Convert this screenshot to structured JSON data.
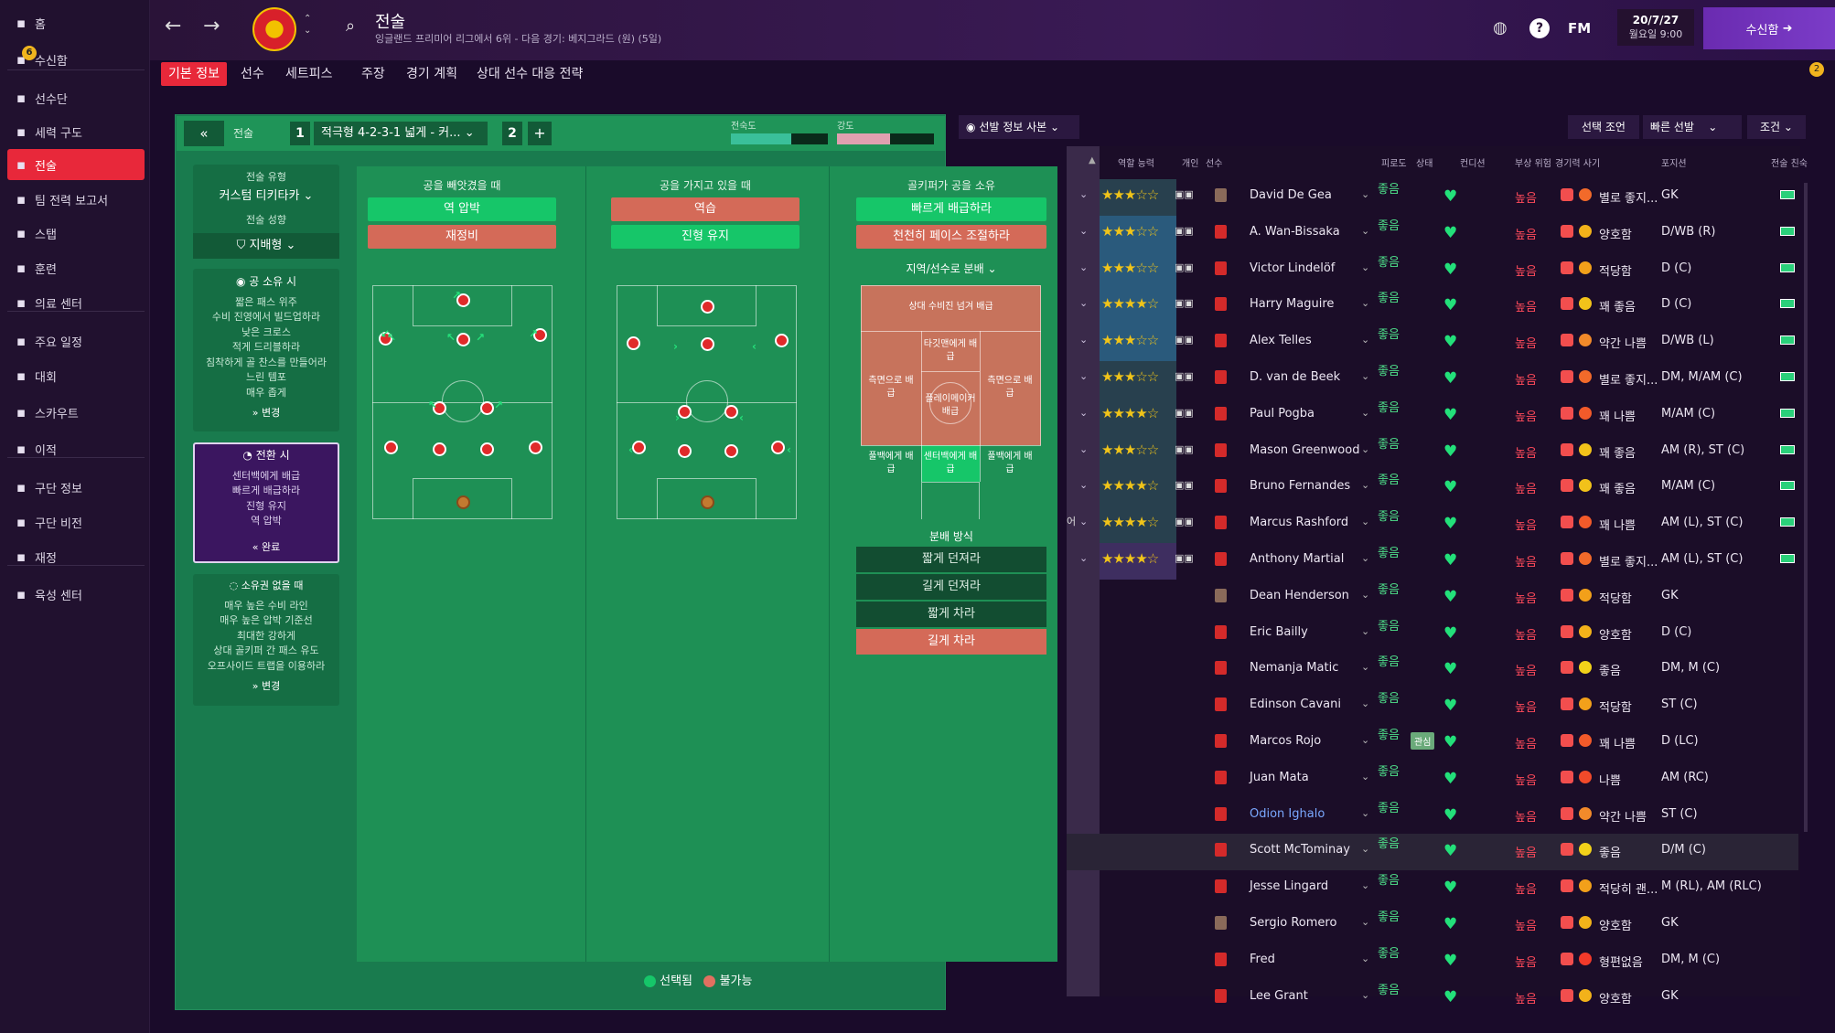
{
  "sidebar": {
    "items": [
      {
        "label": "홈",
        "icon": "home-icon"
      },
      {
        "label": "수신함",
        "icon": "inbox-icon",
        "badge": "6"
      },
      {
        "label": "선수단",
        "icon": "squad-icon"
      },
      {
        "label": "세력 구도",
        "icon": "dynamics-icon"
      },
      {
        "label": "전술",
        "icon": "tactics-icon"
      },
      {
        "label": "팀 전력 보고서",
        "icon": "report-icon"
      },
      {
        "label": "스탭",
        "icon": "staff-icon"
      },
      {
        "label": "훈련",
        "icon": "training-icon"
      },
      {
        "label": "의료 센터",
        "icon": "medical-icon"
      },
      {
        "label": "주요 일정",
        "icon": "calendar-icon"
      },
      {
        "label": "대회",
        "icon": "trophy-icon"
      },
      {
        "label": "스카우트",
        "icon": "scout-icon"
      },
      {
        "label": "이적",
        "icon": "transfer-icon"
      },
      {
        "label": "구단 정보",
        "icon": "club-icon"
      },
      {
        "label": "구단 비전",
        "icon": "vision-icon"
      },
      {
        "label": "재정",
        "icon": "finance-icon"
      },
      {
        "label": "육성 센터",
        "icon": "development-icon"
      }
    ]
  },
  "header": {
    "title": "전술",
    "subtitle": "잉글랜드 프리미어 리그에서 6위 - 다음 경기: 베지그라드 (원) (5일)",
    "fm": "FM",
    "date": "20/7/27",
    "day": "월요일 9:00",
    "inbox_btn": "수신함",
    "notif_count": "2"
  },
  "tabs": [
    "기본 정보",
    "선수",
    "세트피스",
    "주장",
    "경기 계획",
    "상대 선수 대응 전략"
  ],
  "tactic_bar": {
    "label": "전술",
    "slot1": "1",
    "name": "적극형 4-2-3-1 넓게 - 커...",
    "slot2": "2",
    "add": "+",
    "familiarity": "전숙도",
    "intensity": "강도",
    "familiarity_level": 0.62,
    "intensity_level": 0.55
  },
  "toolbar_right": {
    "copy": "선발 정보 사본",
    "selection_advice": "선택 조언",
    "quick_pick": "빠른 선발",
    "conditions": "조건"
  },
  "left_cards": {
    "style_label": "전술 유형",
    "style_value": "커스텀 티키타카",
    "mentality_label": "전술 성향",
    "mentality_value": "지배형",
    "in_possession": {
      "title": "공 소유 시",
      "lines": [
        "짧은 패스 위주",
        "수비 진영에서 빌드업하라",
        "낮은 크로스",
        "적게 드리블하라",
        "침착하게 골 찬스를 만들어라",
        "느린 템포",
        "매우 좁게"
      ],
      "btn": "변경"
    },
    "transition": {
      "title": "전환 시",
      "lines": [
        "센터백에게 배급",
        "빠르게 배급하라",
        "진형 유지",
        "역 압박"
      ],
      "btn": "완료"
    },
    "out_possession": {
      "title": "소유권 없을 때",
      "lines": [
        "매우 높은 수비 라인",
        "매우 높은 압박 기준선",
        "최대한 강하게",
        "상대 골키퍼 간 패스 유도",
        "오프사이드 트랩을 이용하라"
      ],
      "btn": "변경"
    }
  },
  "columns": {
    "lose": {
      "title": "공을 빼앗겼을 때",
      "btn1": "역 압박",
      "btn2": "재정비"
    },
    "win": {
      "title": "공을 가지고 있을 때",
      "btn1": "역습",
      "btn2": "진형 유지"
    },
    "gk": {
      "title": "골키퍼가 공을 소유",
      "btn1": "빠르게 배급하라",
      "btn2": "천천히 페이스 조절하라",
      "dist_dropdown": "지역/선수로 분배",
      "zones": [
        "상대 수비진 넘겨 배급",
        "타깃맨에게 배급",
        "측면으로 배급",
        "플레이메이커 배급",
        "측면으로 배급",
        "풀백에게 배급",
        "센터백에게 배급",
        "풀백에게 배급"
      ],
      "method_title": "분배 방식",
      "methods": [
        "짧게 던져라",
        "길게 던져라",
        "짧게 차라",
        "길게 차라"
      ]
    }
  },
  "legend": {
    "selected": "선택됨",
    "unavailable": "불가능"
  },
  "list_headers": {
    "role": "역할 능력",
    "personal": "개인",
    "player": "선수",
    "fatigue": "피로도",
    "status": "상태",
    "condition": "컨디션",
    "injury": "부상 위험",
    "match_sharp": "경기력 사기",
    "position": "포지션",
    "tactic_fam": "전술 친숙"
  },
  "players": [
    {
      "name": "David De Gea",
      "stars": "★★★☆☆",
      "cond": "좋음",
      "risk": "높음",
      "morale": "별로 좋지...",
      "pos": "GK",
      "mface": "#f26a2a"
    },
    {
      "name": "A. Wan-Bissaka",
      "stars": "★★★☆☆",
      "cond": "좋음",
      "risk": "높음",
      "morale": "양호함",
      "pos": "D/WB (R)",
      "mface": "#f2b21a"
    },
    {
      "name": "Victor Lindelöf",
      "stars": "★★★☆☆",
      "cond": "좋음",
      "risk": "높음",
      "morale": "적당함",
      "pos": "D (C)",
      "mface": "#f2a01a"
    },
    {
      "name": "Harry Maguire",
      "stars": "★★★★☆",
      "cond": "좋음",
      "risk": "높음",
      "morale": "꽤 좋음",
      "pos": "D (C)",
      "mface": "#f2c21a"
    },
    {
      "name": "Alex Telles",
      "stars": "★★★☆☆",
      "cond": "좋음",
      "risk": "높음",
      "morale": "약간 나쁨",
      "pos": "D/WB (L)",
      "mface": "#f28a2a"
    },
    {
      "name": "D. van de Beek",
      "stars": "★★★☆☆",
      "cond": "좋음",
      "risk": "높음",
      "morale": "별로 좋지...",
      "pos": "DM, M/AM (C)",
      "mface": "#f26a2a"
    },
    {
      "name": "Paul Pogba",
      "stars": "★★★★☆",
      "cond": "좋음",
      "risk": "높음",
      "morale": "꽤 나쁨",
      "pos": "M/AM (C)",
      "mface": "#f25a2a"
    },
    {
      "name": "Mason Greenwood",
      "stars": "★★★☆☆",
      "cond": "좋음",
      "risk": "높음",
      "morale": "꽤 좋음",
      "pos": "AM (R), ST (C)",
      "mface": "#f2c21a"
    },
    {
      "name": "Bruno Fernandes",
      "stars": "★★★★☆",
      "cond": "좋음",
      "risk": "높음",
      "morale": "꽤 좋음",
      "pos": "M/AM (C)",
      "mface": "#f2c21a"
    },
    {
      "name": "Marcus Rashford",
      "stars": "★★★★☆",
      "cond": "좋음",
      "risk": "높음",
      "morale": "꽤 나쁨",
      "pos": "AM (L), ST (C)",
      "mface": "#f25a2a"
    },
    {
      "name": "Anthony Martial",
      "stars": "★★★★☆",
      "cond": "좋음",
      "risk": "높음",
      "morale": "별로 좋지...",
      "pos": "AM (L), ST (C)",
      "mface": "#f26a2a"
    },
    {
      "name": "Dean Henderson",
      "stars": "",
      "cond": "좋음",
      "risk": "높음",
      "morale": "적당함",
      "pos": "GK",
      "mface": "#f2a01a"
    },
    {
      "name": "Eric Bailly",
      "stars": "",
      "cond": "좋음",
      "risk": "높음",
      "morale": "양호함",
      "pos": "D (C)",
      "mface": "#f2b21a"
    },
    {
      "name": "Nemanja Matic",
      "stars": "",
      "cond": "좋음",
      "risk": "높음",
      "morale": "좋음",
      "pos": "DM, M (C)",
      "mface": "#f2d21a"
    },
    {
      "name": "Edinson Cavani",
      "stars": "",
      "cond": "좋음",
      "risk": "높음",
      "morale": "적당함",
      "pos": "ST (C)",
      "mface": "#f2a01a"
    },
    {
      "name": "Marcos Rojo",
      "stars": "",
      "cond": "좋음",
      "risk": "높음",
      "morale": "꽤 나쁨",
      "pos": "D (LC)",
      "mface": "#f25a2a",
      "tag": "관심"
    },
    {
      "name": "Juan Mata",
      "stars": "",
      "cond": "좋음",
      "risk": "높음",
      "morale": "나쁨",
      "pos": "AM (RC)",
      "mface": "#f24a2a"
    },
    {
      "name": "Odion Ighalo",
      "stars": "",
      "cond": "좋음",
      "risk": "높음",
      "morale": "약간 나쁨",
      "pos": "ST (C)",
      "mface": "#f28a2a",
      "link": true
    },
    {
      "name": "Scott McTominay",
      "stars": "",
      "cond": "좋음",
      "risk": "높음",
      "morale": "좋음",
      "pos": "D/M (C)",
      "mface": "#f2d21a"
    },
    {
      "name": "Jesse Lingard",
      "stars": "",
      "cond": "좋음",
      "risk": "높음",
      "morale": "적당히 괜...",
      "pos": "M (RL), AM (RLC)",
      "mface": "#f2a01a"
    },
    {
      "name": "Sergio Romero",
      "stars": "",
      "cond": "좋음",
      "risk": "높음",
      "morale": "양호함",
      "pos": "GK",
      "mface": "#f2b21a"
    },
    {
      "name": "Fred",
      "stars": "",
      "cond": "좋음",
      "risk": "높음",
      "morale": "형편없음",
      "pos": "DM, M (C)",
      "mface": "#f23a2a"
    },
    {
      "name": "Lee Grant",
      "stars": "",
      "cond": "좋음",
      "risk": "높음",
      "morale": "양호함",
      "pos": "GK",
      "mface": "#f2b21a"
    }
  ],
  "side_label": "어"
}
